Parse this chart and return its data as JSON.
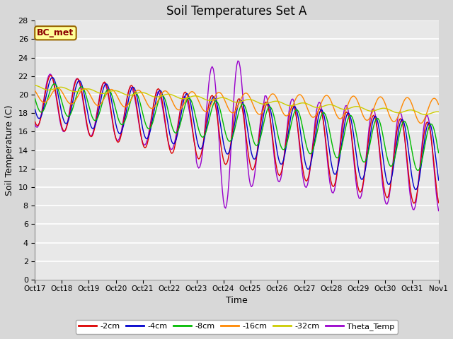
{
  "title": "Soil Temperatures Set A",
  "xlabel": "Time",
  "ylabel": "Soil Temperature (C)",
  "ylim": [
    0,
    28
  ],
  "yticks": [
    0,
    2,
    4,
    6,
    8,
    10,
    12,
    14,
    16,
    18,
    20,
    22,
    24,
    26,
    28
  ],
  "xtick_labels": [
    "Oct 17",
    "Oct 18",
    "Oct 19",
    "Oct 20",
    "Oct 21",
    "Oct 22",
    "Oct 23",
    "Oct 24",
    "Oct 25",
    "Oct 26",
    "Oct 27",
    "Oct 28",
    "Oct 29",
    "Oct 30",
    "Oct 31",
    "Nov 1"
  ],
  "annotation_text": "BC_met",
  "annotation_bg": "#ffff99",
  "annotation_border": "#996600",
  "colors": {
    "-2cm": "#dd0000",
    "-4cm": "#0000cc",
    "-8cm": "#00bb00",
    "-16cm": "#ff8800",
    "-32cm": "#cccc00",
    "Theta_Temp": "#9900cc"
  },
  "legend_labels": [
    "-2cm",
    "-4cm",
    "-8cm",
    "-16cm",
    "-32cm",
    "Theta_Temp"
  ],
  "bg_color": "#d8d8d8",
  "plot_bg_color": "#e8e8e8",
  "grid_color": "#ffffff",
  "title_fontsize": 12,
  "axis_label_fontsize": 9
}
